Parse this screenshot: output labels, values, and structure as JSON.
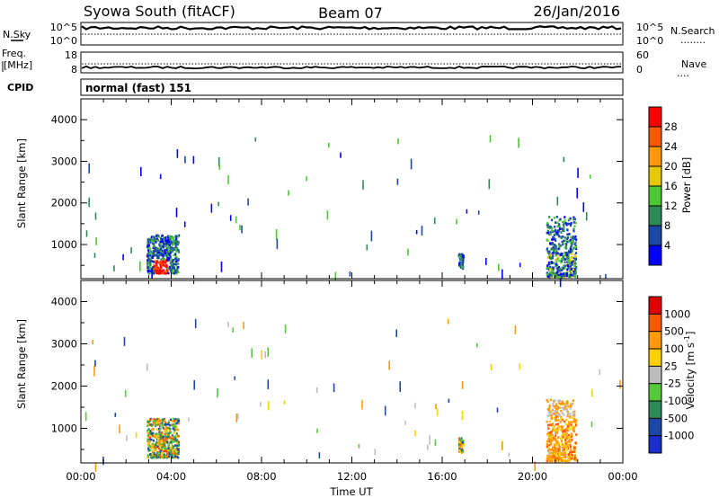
{
  "header": {
    "station": "Syowa South (fitACF)",
    "beam": "Beam 07",
    "date": "26/Jan/2016"
  },
  "top_panels": {
    "nsky_label": "N.Sky",
    "nsearch_label": "N.Search",
    "nsearch_marker": "........",
    "noise_top": "10^5",
    "noise_bottom": "10^0",
    "freq_label_1": "Freq.",
    "freq_label_2": "[MHz]",
    "freq_top": "18",
    "freq_bottom": "8",
    "nave_label": "Nave",
    "nave_marker": "....",
    "nave_top": "60",
    "nave_bottom": "0",
    "cpid_label": "CPID",
    "cpid_value": "normal (fast) 151"
  },
  "colors": {
    "power": [
      "#0000ff",
      "#1b48a8",
      "#2e8b57",
      "#4dc834",
      "#e6c800",
      "#ff9a00",
      "#ff5a00",
      "#ff0000"
    ],
    "velocity": [
      "#e00000",
      "#ff5a00",
      "#ff9a00",
      "#ffd000",
      "#bdbdbd",
      "#55c83c",
      "#2e8b57",
      "#1b48a8",
      "#1a2fcc"
    ]
  },
  "chart_data": [
    {
      "type": "heatmap",
      "quantity": "power",
      "ylabel": "Slant Range [km]",
      "xlabel": "",
      "ylim": [
        180,
        4500
      ],
      "yticks": [
        "1000",
        "2000",
        "3000",
        "4000"
      ],
      "colorbar_label": "Power [dB]",
      "colorbar_ticks": [
        "4",
        "8",
        "12",
        "16",
        "20",
        "24",
        "28"
      ],
      "colorbar_range": [
        0,
        32
      ],
      "regions": [
        {
          "time_start_h": 2.9,
          "time_end_h": 4.3,
          "range_start_km": 330,
          "range_end_km": 1250,
          "description": "patchy echoes, blue-green, red/orange near 500 km"
        },
        {
          "time_start_h": 16.7,
          "time_end_h": 16.9,
          "range_start_km": 450,
          "range_end_km": 800,
          "description": "small patch"
        },
        {
          "time_start_h": 20.6,
          "time_end_h": 21.9,
          "range_start_km": 250,
          "range_end_km": 1700,
          "description": "dense band 300-800 km, band near 1500 km"
        }
      ]
    },
    {
      "type": "heatmap",
      "quantity": "velocity",
      "ylabel": "Slant Range [km]",
      "xlabel": "Time UT",
      "x_ticks": [
        "00:00",
        "04:00",
        "08:00",
        "12:00",
        "16:00",
        "20:00",
        "00:00"
      ],
      "xlim_hours": [
        0,
        24
      ],
      "ylim": [
        180,
        4500
      ],
      "yticks": [
        "1000",
        "2000",
        "3000",
        "4000"
      ],
      "colorbar_label": "Velocity [m s^-1]",
      "colorbar_label_main": "Velocity",
      "colorbar_label_unit": "[m s",
      "colorbar_label_exp": "-1",
      "colorbar_label_close": "]",
      "colorbar_ticks": [
        "1000",
        "500",
        "100",
        "25",
        "-25",
        "-100",
        "-500",
        "-1000"
      ],
      "regions": [
        {
          "time_start_h": 2.9,
          "time_end_h": 4.3,
          "range_start_km": 330,
          "range_end_km": 1250,
          "description": "mixed orange/green/blue echoes"
        },
        {
          "time_start_h": 16.7,
          "time_end_h": 16.9,
          "range_start_km": 450,
          "range_end_km": 800,
          "description": "orange patch"
        },
        {
          "time_start_h": 20.6,
          "time_end_h": 21.9,
          "range_start_km": 250,
          "range_end_km": 1700,
          "description": "mostly orange/yellow echoes, grey near 1500 km"
        }
      ]
    }
  ]
}
